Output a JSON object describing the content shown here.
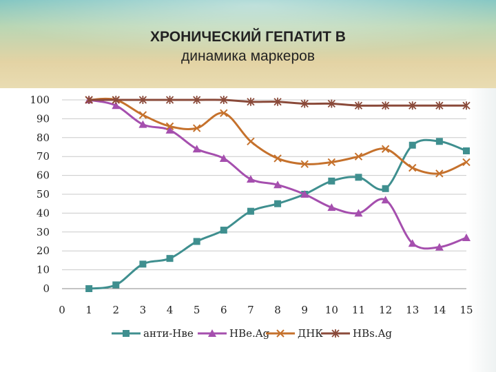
{
  "slide": {
    "title_line1": "ХРОНИЧЕСКИЙ ГЕПАТИТ В",
    "title_line2": "динамика маркеров"
  },
  "chart_data": {
    "type": "line",
    "title": "",
    "xlabel": "",
    "ylabel": "",
    "x": [
      1,
      2,
      3,
      4,
      5,
      6,
      7,
      8,
      9,
      10,
      11,
      12,
      13,
      14,
      15
    ],
    "xlim": [
      0,
      15
    ],
    "ylim": [
      0,
      100
    ],
    "x_ticks": [
      0,
      1,
      2,
      3,
      4,
      5,
      6,
      7,
      8,
      9,
      10,
      11,
      12,
      13,
      14,
      15
    ],
    "y_ticks": [
      0,
      10,
      20,
      30,
      40,
      50,
      60,
      70,
      80,
      90,
      100
    ],
    "grid": "horizontal",
    "legend_position": "bottom",
    "series": [
      {
        "name": "анти-Нве",
        "color": "#3f8f8f",
        "marker": "square",
        "values": [
          0,
          2,
          13,
          16,
          25,
          31,
          41,
          45,
          50,
          57,
          59,
          53,
          76,
          78,
          73
        ]
      },
      {
        "name": "НВе.Ag",
        "color": "#a54fae",
        "marker": "triangle",
        "values": [
          100,
          97,
          87,
          84,
          74,
          69,
          58,
          55,
          50,
          43,
          40,
          47,
          24,
          22,
          27
        ]
      },
      {
        "name": "ДНК",
        "color": "#c5712c",
        "marker": "x",
        "values": [
          100,
          100,
          92,
          86,
          85,
          93,
          78,
          69,
          66,
          67,
          70,
          74,
          64,
          61,
          67
        ]
      },
      {
        "name": "HBs.Ag",
        "color": "#8a4a3a",
        "marker": "star",
        "values": [
          100,
          100,
          100,
          100,
          100,
          100,
          99,
          99,
          98,
          98,
          97,
          97,
          97,
          97,
          97
        ]
      }
    ]
  }
}
